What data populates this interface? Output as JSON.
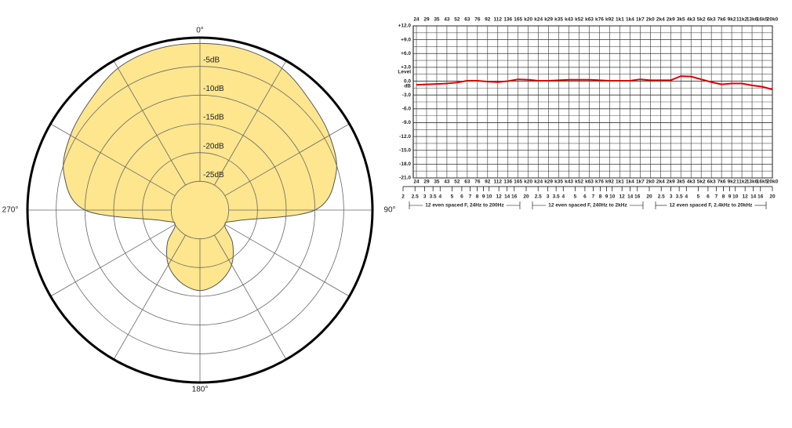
{
  "chart_data": [
    {
      "type": "polar",
      "theta": [
        0,
        15,
        30,
        45,
        60,
        75,
        90,
        105,
        120,
        135,
        150,
        165,
        180,
        195,
        210,
        225,
        240,
        255,
        270,
        285,
        300,
        315,
        330,
        345
      ],
      "values": [
        -1,
        -1,
        -1.5,
        -3,
        -4,
        -5.5,
        -10,
        -23,
        -25,
        -22,
        -19,
        -17,
        -16,
        -17,
        -19,
        -22,
        -25,
        -23,
        -10,
        -5.5,
        -4,
        -3,
        -1.5,
        -1
      ],
      "color": "#fde68e",
      "rlim": [
        -30,
        0
      ],
      "rticks": [
        {
          "value": -25,
          "label": "-25dB"
        },
        {
          "value": -20,
          "label": "-20dB"
        },
        {
          "value": -15,
          "label": "-15dB"
        },
        {
          "value": -10,
          "label": "-10dB"
        },
        {
          "value": -5,
          "label": "-5dB"
        }
      ],
      "thetaticks": [
        {
          "value": 0,
          "label": "0°"
        },
        {
          "value": 90,
          "label": "90°"
        },
        {
          "value": 180,
          "label": "180°"
        },
        {
          "value": 270,
          "label": "270°"
        }
      ],
      "spoke_step": 30
    },
    {
      "type": "line",
      "categories": [
        "24",
        "29",
        "35",
        "43",
        "52",
        "63",
        "76",
        "92",
        "112",
        "136",
        "165",
        "k20",
        "k24",
        "k29",
        "k35",
        "k43",
        "k52",
        "k63",
        "k76",
        "k92",
        "1k1",
        "1k4",
        "1k7",
        "2k0",
        "2k4",
        "2k9",
        "3k5",
        "4k3",
        "5k2",
        "6k3",
        "7k6",
        "9k2",
        "11k2",
        "13k6",
        "16k5",
        "20k0"
      ],
      "series": [
        {
          "color": "#e00000",
          "values": [
            -0.8,
            -0.7,
            -0.6,
            -0.5,
            -0.3,
            0.1,
            0.1,
            -0.1,
            -0.2,
            0,
            0.4,
            0.3,
            0.1,
            0.1,
            0.2,
            0.3,
            0.3,
            0.3,
            0.2,
            0.1,
            0.1,
            0.1,
            0.4,
            0.2,
            0.2,
            0.2,
            1.1,
            1.0,
            0.4,
            -0.2,
            -0.7,
            -0.5,
            -0.5,
            -0.9,
            -1.2,
            -1.8
          ]
        }
      ],
      "ylabel": [
        "Level",
        "dB"
      ],
      "ylim": [
        -21,
        12
      ],
      "yticks": [
        {
          "value": 12,
          "label": "+12.0"
        },
        {
          "value": 9,
          "label": "+9.0"
        },
        {
          "value": 6,
          "label": "+6.0"
        },
        {
          "value": 3,
          "label": "+3.0"
        },
        {
          "value": 0,
          "label": "0.0"
        },
        {
          "value": -3,
          "label": "-3.0"
        },
        {
          "value": -6,
          "label": "-6.0"
        },
        {
          "value": -9,
          "label": "-9.0"
        },
        {
          "value": -12,
          "label": "-12.0"
        },
        {
          "value": -15,
          "label": "-15.0"
        },
        {
          "value": -18,
          "label": "-18.0"
        },
        {
          "value": -21,
          "label": "-21.0"
        }
      ],
      "y_minor_ticks": [
        10.5,
        7.5,
        4.5,
        1.5,
        -1.5,
        -4.5,
        -7.5,
        -10.5,
        -13.5,
        -16.5,
        -19.5
      ],
      "grid": true,
      "x2_groups": [
        {
          "labels": [
            2,
            2.5,
            3,
            3.5,
            4,
            5,
            6,
            7,
            8,
            9,
            10,
            12,
            14,
            16,
            20
          ],
          "range": "12 even spaced  F, 24Hz to 200Hz"
        },
        {
          "labels": [
            2.5,
            3,
            3.5,
            4,
            5,
            6,
            7,
            8,
            9,
            10,
            12,
            14,
            16,
            20
          ],
          "range": "12 even spaced  F, 240Hz to 2kHz"
        },
        {
          "labels": [
            2.5,
            3,
            3.5,
            4,
            5,
            6,
            7,
            8,
            9,
            10,
            12,
            14,
            16,
            20
          ],
          "range": "12 even spaced  F, 2.4kHz to 20kHz"
        }
      ]
    }
  ]
}
